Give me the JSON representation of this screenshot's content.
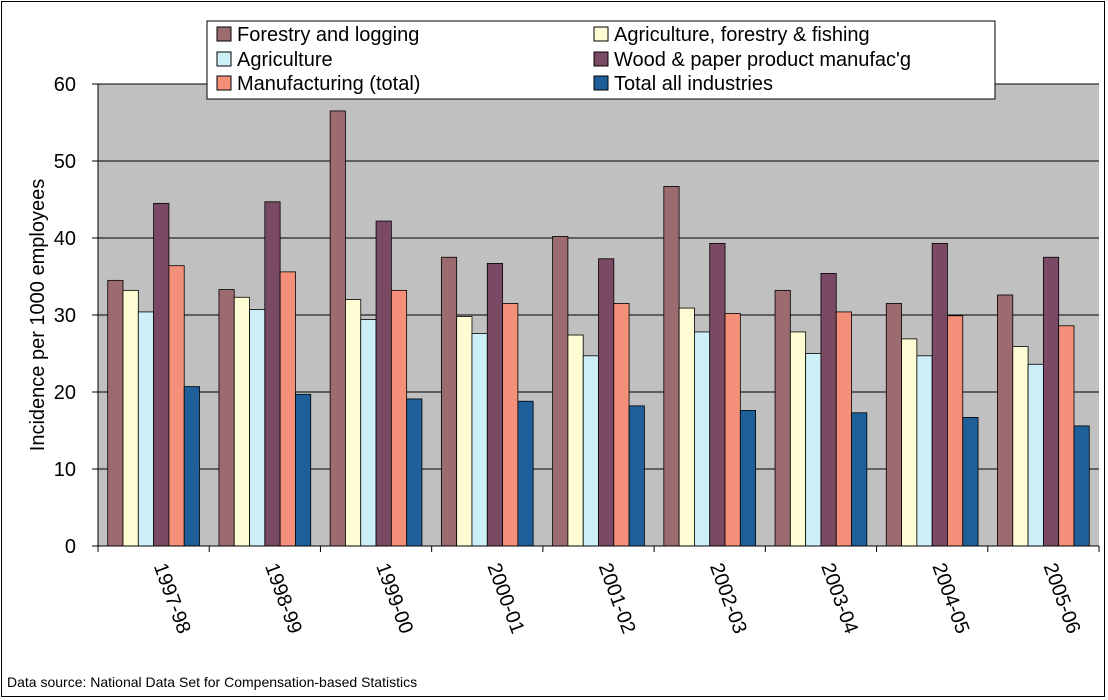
{
  "chart_data": {
    "type": "bar",
    "ylabel": "Incidence per 1000 employees",
    "xlabel": "",
    "ylim": [
      0,
      60
    ],
    "yticks": [
      0,
      10,
      20,
      30,
      40,
      50,
      60
    ],
    "grid": true,
    "legend_position": "top",
    "categories": [
      "1997-98",
      "1998-99",
      "1999-00",
      "2000-01",
      "2001-02",
      "2002-03",
      "2003-04",
      "2004-05",
      "2005-06"
    ],
    "series": [
      {
        "name": "Forestry and logging",
        "color": "#9c6b6f",
        "values": [
          34.5,
          33.3,
          56.5,
          37.5,
          40.2,
          46.7,
          33.2,
          31.5,
          32.6
        ]
      },
      {
        "name": "Agriculture, forestry & fishing",
        "color": "#fdfcd2",
        "values": [
          33.2,
          32.3,
          32.0,
          29.8,
          27.4,
          30.9,
          27.8,
          26.9,
          25.9
        ]
      },
      {
        "name": "Agriculture",
        "color": "#cdeff8",
        "values": [
          30.4,
          30.7,
          29.4,
          27.6,
          24.7,
          27.8,
          25.0,
          24.7,
          23.6
        ]
      },
      {
        "name": "Wood & paper product manufac'g",
        "color": "#7a4a64",
        "values": [
          44.5,
          44.7,
          42.2,
          36.7,
          37.3,
          39.3,
          35.4,
          39.3,
          37.5
        ]
      },
      {
        "name": "Manufacturing (total)",
        "color": "#f49079",
        "values": [
          36.4,
          35.6,
          33.2,
          31.5,
          31.5,
          30.2,
          30.4,
          29.9,
          28.6
        ]
      },
      {
        "name": "Total all industries",
        "color": "#1f5f99",
        "values": [
          20.7,
          19.7,
          19.1,
          18.8,
          18.2,
          17.6,
          17.3,
          16.7,
          15.6
        ]
      }
    ],
    "source_note": "Data source: National Data Set for Compensation-based Statistics",
    "plot_background": "#c0c0c0"
  }
}
